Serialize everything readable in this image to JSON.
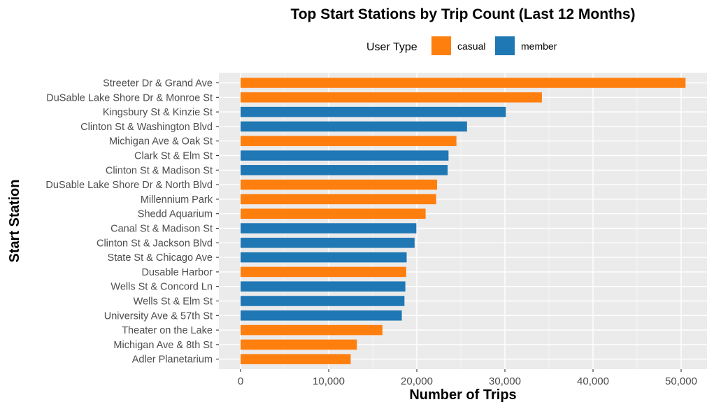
{
  "chart_data": {
    "type": "bar",
    "orientation": "horizontal",
    "title": "Top Start Stations by Trip Count (Last 12 Months)",
    "xlabel": "Number of Trips",
    "ylabel": "Start Station",
    "xlim": [
      0,
      52000
    ],
    "xticks": [
      0,
      10000,
      20000,
      30000,
      40000,
      50000
    ],
    "xtick_labels": [
      "0",
      "10,000",
      "20,000",
      "30,000",
      "40,000",
      "50,000"
    ],
    "grid": true,
    "legend": {
      "title": "User Type",
      "position": "top",
      "entries": [
        {
          "name": "casual",
          "color": "#ff7f0e"
        },
        {
          "name": "member",
          "color": "#1f77b4"
        }
      ]
    },
    "categories": [
      "Streeter Dr & Grand Ave",
      "DuSable Lake Shore Dr & Monroe St",
      "Kingsbury St & Kinzie St",
      "Clinton St & Washington Blvd",
      "Michigan Ave & Oak St",
      "Clark St & Elm St",
      "Clinton St & Madison St",
      "DuSable Lake Shore Dr & North Blvd",
      "Millennium Park",
      "Shedd Aquarium",
      "Canal St & Madison St",
      "Clinton St & Jackson Blvd",
      "State St & Chicago Ave",
      "Dusable Harbor",
      "Wells St & Concord Ln",
      "Wells St & Elm St",
      "University Ave & 57th St",
      "Theater on the Lake",
      "Michigan Ave & 8th St",
      "Adler Planetarium"
    ],
    "values": [
      50500,
      34200,
      30100,
      25700,
      24500,
      23600,
      23500,
      22300,
      22200,
      21000,
      19950,
      19750,
      18850,
      18800,
      18700,
      18600,
      18300,
      16100,
      13200,
      12500
    ],
    "user_type": [
      "casual",
      "casual",
      "member",
      "member",
      "casual",
      "member",
      "member",
      "casual",
      "casual",
      "casual",
      "member",
      "member",
      "member",
      "casual",
      "member",
      "member",
      "member",
      "casual",
      "casual",
      "casual"
    ]
  },
  "colors": {
    "panel_background": "#ebebeb",
    "grid_major": "#ffffff",
    "casual": "#ff7f0e",
    "member": "#1f77b4"
  }
}
